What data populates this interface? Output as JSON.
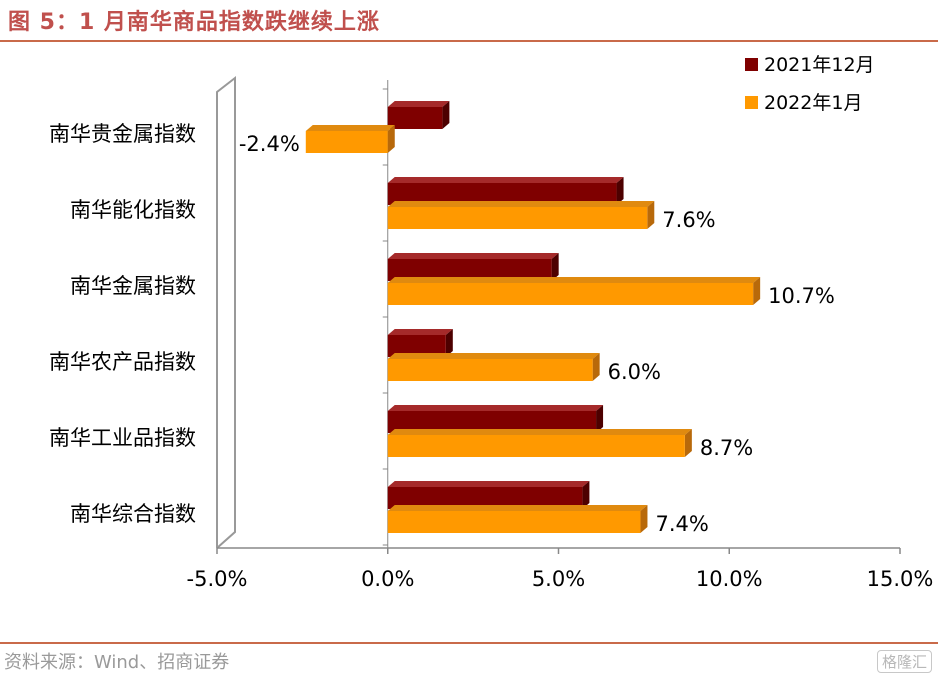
{
  "header": {
    "title": "图 5：1 月南华商品指数跌继续上涨"
  },
  "footer": {
    "source": "资料来源：Wind、招商证券",
    "watermark": "格隆汇"
  },
  "colors": {
    "s2021_front": "#7f0000",
    "s2021_top": "#a52a2a",
    "s2021_side": "#4d0000",
    "s2022_front": "#ff9900",
    "s2022_top": "#e08a0f",
    "s2022_side": "#b8690a",
    "accent": "#c0504d"
  },
  "chart_data": {
    "type": "bar",
    "orientation": "horizontal",
    "categories": [
      "南华贵金属指数",
      "南华能化指数",
      "南华金属指数",
      "南华农产品指数",
      "南华工业品指数",
      "南华综合指数"
    ],
    "series": [
      {
        "name": "2021年12月",
        "values": [
          1.6,
          6.7,
          4.8,
          1.7,
          6.1,
          5.7
        ]
      },
      {
        "name": "2022年1月",
        "values": [
          -2.4,
          7.6,
          10.7,
          6.0,
          8.7,
          7.4
        ],
        "labels": [
          "-2.4%",
          "7.6%",
          "10.7%",
          "6.0%",
          "8.7%",
          "7.4%"
        ]
      }
    ],
    "xlim": [
      -5,
      15
    ],
    "xticks": [
      -5,
      0,
      5,
      10,
      15
    ],
    "xtick_labels": [
      "-5.0%",
      "0.0%",
      "5.0%",
      "10.0%",
      "15.0%"
    ],
    "legend_position": "top-right",
    "grid": false
  }
}
